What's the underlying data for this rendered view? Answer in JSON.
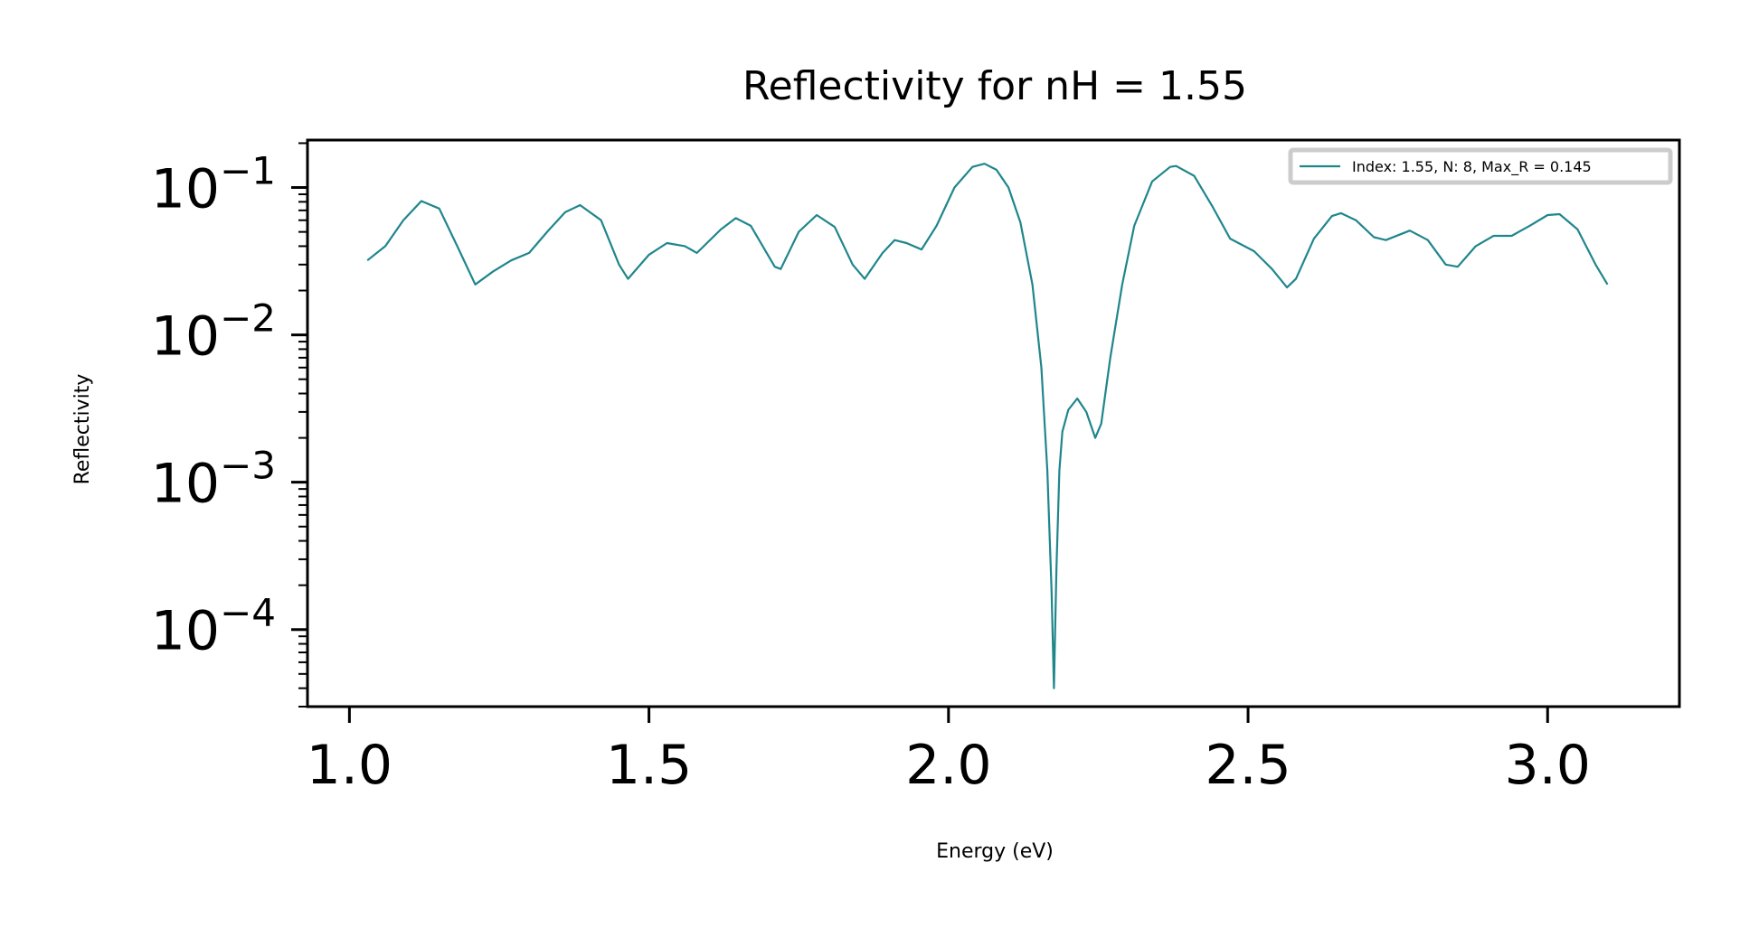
{
  "chart_data": {
    "type": "line",
    "title": "Reflectivity for nH = 1.55",
    "xlabel": "Energy (eV)",
    "ylabel": "Reflectivity",
    "xscale": "linear",
    "yscale": "log",
    "xlim": [
      0.93,
      3.22
    ],
    "ylim": [
      3e-05,
      0.21
    ],
    "xticks": [
      {
        "value": 1.0,
        "label": "1.0"
      },
      {
        "value": 1.5,
        "label": "1.5"
      },
      {
        "value": 2.0,
        "label": "2.0"
      },
      {
        "value": 2.5,
        "label": "2.5"
      },
      {
        "value": 3.0,
        "label": "3.0"
      }
    ],
    "yticks": [
      {
        "value": 0.1,
        "base": "10",
        "exp": "−1"
      },
      {
        "value": 0.01,
        "base": "10",
        "exp": "−2"
      },
      {
        "value": 0.001,
        "base": "10",
        "exp": "−3"
      },
      {
        "value": 0.0001,
        "base": "10",
        "exp": "−4"
      }
    ],
    "grid": false,
    "legend_position": "top-right",
    "series": [
      {
        "name": "Index: 1.55, N: 8, Max_R = 0.145",
        "color": "#1f868c",
        "points": [
          [
            1.03,
            0.032
          ],
          [
            1.06,
            0.04
          ],
          [
            1.09,
            0.06
          ],
          [
            1.12,
            0.081
          ],
          [
            1.15,
            0.072
          ],
          [
            1.18,
            0.04
          ],
          [
            1.21,
            0.022
          ],
          [
            1.24,
            0.027
          ],
          [
            1.27,
            0.032
          ],
          [
            1.3,
            0.036
          ],
          [
            1.33,
            0.05
          ],
          [
            1.36,
            0.068
          ],
          [
            1.385,
            0.076
          ],
          [
            1.42,
            0.06
          ],
          [
            1.45,
            0.03
          ],
          [
            1.465,
            0.024
          ],
          [
            1.5,
            0.035
          ],
          [
            1.53,
            0.042
          ],
          [
            1.56,
            0.04
          ],
          [
            1.58,
            0.036
          ],
          [
            1.62,
            0.052
          ],
          [
            1.645,
            0.062
          ],
          [
            1.67,
            0.055
          ],
          [
            1.71,
            0.029
          ],
          [
            1.72,
            0.028
          ],
          [
            1.75,
            0.05
          ],
          [
            1.78,
            0.065
          ],
          [
            1.81,
            0.054
          ],
          [
            1.84,
            0.03
          ],
          [
            1.86,
            0.024
          ],
          [
            1.89,
            0.036
          ],
          [
            1.91,
            0.044
          ],
          [
            1.93,
            0.042
          ],
          [
            1.955,
            0.038
          ],
          [
            1.98,
            0.055
          ],
          [
            2.01,
            0.1
          ],
          [
            2.04,
            0.138
          ],
          [
            2.06,
            0.145
          ],
          [
            2.08,
            0.132
          ],
          [
            2.1,
            0.1
          ],
          [
            2.12,
            0.058
          ],
          [
            2.14,
            0.022
          ],
          [
            2.155,
            0.006
          ],
          [
            2.165,
            0.0012
          ],
          [
            2.172,
            0.00018
          ],
          [
            2.176,
            4e-05
          ],
          [
            2.18,
            0.00025
          ],
          [
            2.185,
            0.0012
          ],
          [
            2.19,
            0.0022
          ],
          [
            2.2,
            0.0031
          ],
          [
            2.215,
            0.0037
          ],
          [
            2.23,
            0.003
          ],
          [
            2.245,
            0.002
          ],
          [
            2.255,
            0.0025
          ],
          [
            2.27,
            0.007
          ],
          [
            2.29,
            0.022
          ],
          [
            2.31,
            0.055
          ],
          [
            2.34,
            0.11
          ],
          [
            2.37,
            0.138
          ],
          [
            2.38,
            0.14
          ],
          [
            2.41,
            0.12
          ],
          [
            2.44,
            0.075
          ],
          [
            2.47,
            0.045
          ],
          [
            2.51,
            0.037
          ],
          [
            2.54,
            0.028
          ],
          [
            2.565,
            0.021
          ],
          [
            2.58,
            0.024
          ],
          [
            2.61,
            0.045
          ],
          [
            2.64,
            0.064
          ],
          [
            2.655,
            0.067
          ],
          [
            2.68,
            0.06
          ],
          [
            2.71,
            0.046
          ],
          [
            2.73,
            0.044
          ],
          [
            2.77,
            0.051
          ],
          [
            2.8,
            0.044
          ],
          [
            2.83,
            0.03
          ],
          [
            2.85,
            0.029
          ],
          [
            2.88,
            0.04
          ],
          [
            2.91,
            0.047
          ],
          [
            2.94,
            0.047
          ],
          [
            2.97,
            0.055
          ],
          [
            3.0,
            0.065
          ],
          [
            3.02,
            0.066
          ],
          [
            3.05,
            0.052
          ],
          [
            3.08,
            0.03
          ],
          [
            3.1,
            0.022
          ]
        ]
      }
    ]
  }
}
